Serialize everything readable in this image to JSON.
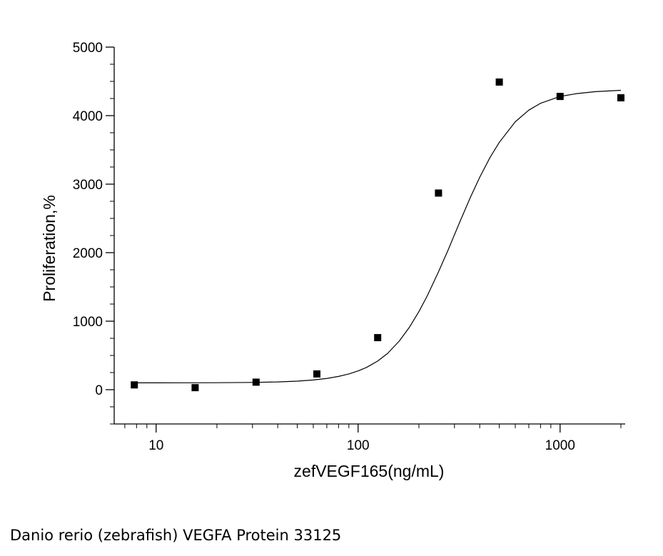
{
  "caption": "Danio rerio (zebrafish) VEGFA Protein 33125",
  "chart_data": {
    "type": "scatter",
    "xlabel": "zefVEGF165(ng/mL)",
    "ylabel": "Proliferation,%",
    "x_scale": "log",
    "xlim": [
      6.2,
      2100
    ],
    "ylim": [
      -500,
      5000
    ],
    "x_ticks": [
      10,
      100,
      1000
    ],
    "x_tick_labels": [
      "10",
      "100",
      "1000"
    ],
    "y_ticks": [
      0,
      1000,
      2000,
      3000,
      4000,
      5000
    ],
    "y_tick_labels": [
      "0",
      "1000",
      "2000",
      "3000",
      "4000",
      "5000"
    ],
    "grid": false,
    "legend": "none",
    "series": [
      {
        "type": "scatter",
        "x": [
          7.8,
          15.6,
          31.25,
          62.5,
          125,
          250,
          500,
          1000,
          2000
        ],
        "y": [
          70,
          30,
          110,
          230,
          760,
          2870,
          4490,
          4280,
          4260
        ]
      },
      {
        "type": "line",
        "x": [
          7.8,
          10,
          15,
          20,
          30,
          40,
          50,
          60,
          70,
          80,
          90,
          100,
          110,
          125,
          140,
          160,
          180,
          200,
          220,
          250,
          280,
          320,
          360,
          400,
          450,
          500,
          600,
          700,
          800,
          1000,
          1200,
          1500,
          2000
        ],
        "y": [
          100,
          100,
          101,
          102,
          106,
          113,
          125,
          142,
          164,
          194,
          230,
          274,
          325,
          418,
          530,
          711,
          917,
          1140,
          1370,
          1720,
          2050,
          2460,
          2810,
          3100,
          3390,
          3610,
          3910,
          4080,
          4180,
          4280,
          4320,
          4350,
          4370
        ]
      }
    ],
    "colors": {
      "marker": "#000000",
      "line": "#000000",
      "axis": "#000000"
    }
  }
}
